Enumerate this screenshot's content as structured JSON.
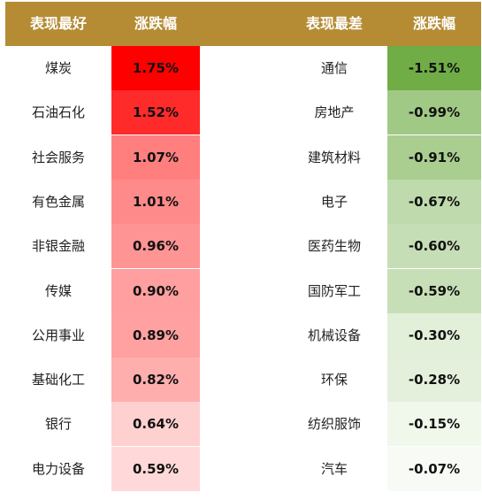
{
  "header": {
    "best_label": "表现最好",
    "best_change_label": "涨跌幅",
    "worst_label": "表现最差",
    "worst_change_label": "涨跌幅",
    "color": "#b58c34"
  },
  "chart_data": {
    "type": "table",
    "best": [
      {
        "sector": "煤炭",
        "change": "1.75%",
        "value": 1.75
      },
      {
        "sector": "石油石化",
        "change": "1.52%",
        "value": 1.52
      },
      {
        "sector": "社会服务",
        "change": "1.07%",
        "value": 1.07
      },
      {
        "sector": "有色金属",
        "change": "1.01%",
        "value": 1.01
      },
      {
        "sector": "非银金融",
        "change": "0.96%",
        "value": 0.96
      },
      {
        "sector": "传媒",
        "change": "0.90%",
        "value": 0.9
      },
      {
        "sector": "公用事业",
        "change": "0.89%",
        "value": 0.89
      },
      {
        "sector": "基础化工",
        "change": "0.82%",
        "value": 0.82
      },
      {
        "sector": "银行",
        "change": "0.64%",
        "value": 0.64
      },
      {
        "sector": "电力设备",
        "change": "0.59%",
        "value": 0.59
      }
    ],
    "worst": [
      {
        "sector": "通信",
        "change": "-1.51%",
        "value": -1.51
      },
      {
        "sector": "房地产",
        "change": "-0.99%",
        "value": -0.99
      },
      {
        "sector": "建筑材料",
        "change": "-0.91%",
        "value": -0.91
      },
      {
        "sector": "电子",
        "change": "-0.67%",
        "value": -0.67
      },
      {
        "sector": "医药生物",
        "change": "-0.60%",
        "value": -0.6
      },
      {
        "sector": "国防军工",
        "change": "-0.59%",
        "value": -0.59
      },
      {
        "sector": "机械设备",
        "change": "-0.30%",
        "value": -0.3
      },
      {
        "sector": "环保",
        "change": "-0.28%",
        "value": -0.28
      },
      {
        "sector": "纺织服饰",
        "change": "-0.15%",
        "value": -0.15
      },
      {
        "sector": "汽车",
        "change": "-0.07%",
        "value": -0.07
      }
    ],
    "colors": {
      "best_max": "#ff0000",
      "best_min": "#ffd9d9",
      "worst_max": "#70ad47",
      "worst_min": "#f8fbf5"
    }
  }
}
